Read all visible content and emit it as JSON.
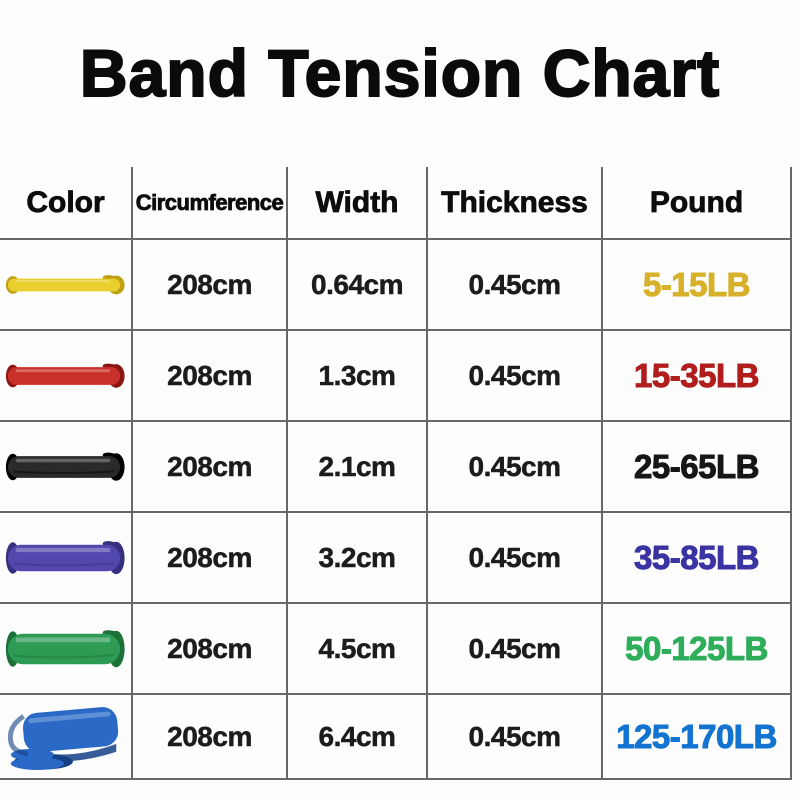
{
  "title": "Band Tension Chart",
  "table": {
    "headers": [
      {
        "label": "Color"
      },
      {
        "label": "Circumference"
      },
      {
        "label": "Width"
      },
      {
        "label": "Thickness"
      },
      {
        "label": "Pound"
      }
    ],
    "rows": [
      {
        "band": {
          "name": "yellow-band",
          "color_name": "yellow",
          "fill": "#E9CF2D",
          "dark": "#BFA013",
          "thumb_height": 13,
          "style": "flat"
        },
        "circumference": "208cm",
        "width": "0.64cm",
        "thickness": "0.45cm",
        "pound": "5-15LB",
        "pound_color": "#D7B12A"
      },
      {
        "band": {
          "name": "red-band",
          "color_name": "red",
          "fill": "#C93028",
          "dark": "#8C1712",
          "thumb_height": 18,
          "style": "flat"
        },
        "circumference": "208cm",
        "width": "1.3cm",
        "thickness": "0.45cm",
        "pound": "15-35LB",
        "pound_color": "#B11D1D"
      },
      {
        "band": {
          "name": "black-band",
          "color_name": "black",
          "fill": "#2A2A2A",
          "dark": "#000000",
          "thumb_height": 22,
          "style": "flat"
        },
        "circumference": "208cm",
        "width": "2.1cm",
        "thickness": "0.45cm",
        "pound": "25-65LB",
        "pound_color": "#161616"
      },
      {
        "band": {
          "name": "purple-band",
          "color_name": "purple",
          "fill": "#5247AC",
          "dark": "#37307E",
          "thumb_height": 27,
          "style": "flat"
        },
        "circumference": "208cm",
        "width": "3.2cm",
        "thickness": "0.45cm",
        "pound": "35-85LB",
        "pound_color": "#3A33A2"
      },
      {
        "band": {
          "name": "green-band",
          "color_name": "green",
          "fill": "#2E9B55",
          "dark": "#1C7038",
          "thumb_height": 31,
          "style": "flat"
        },
        "circumference": "208cm",
        "width": "4.5cm",
        "thickness": "0.45cm",
        "pound": "50-125LB",
        "pound_color": "#2EAD5B"
      },
      {
        "band": {
          "name": "blue-band",
          "color_name": "blue",
          "fill": "#2A6AC6",
          "dark": "#153F85",
          "thumb_height": 55,
          "style": "coil"
        },
        "circumference": "208cm",
        "width": "6.4cm",
        "thickness": "0.45cm",
        "pound": "125-170LB",
        "pound_color": "#1273D0"
      }
    ]
  },
  "chart_data": {
    "type": "table",
    "title": "Band Tension Chart",
    "columns": [
      "Color",
      "Circumference",
      "Width",
      "Thickness",
      "Pound"
    ],
    "rows": [
      [
        "yellow",
        "208cm",
        "0.64cm",
        "0.45cm",
        "5-15LB"
      ],
      [
        "red",
        "208cm",
        "1.3cm",
        "0.45cm",
        "15-35LB"
      ],
      [
        "black",
        "208cm",
        "2.1cm",
        "0.45cm",
        "25-65LB"
      ],
      [
        "purple",
        "208cm",
        "3.2cm",
        "0.45cm",
        "35-85LB"
      ],
      [
        "green",
        "208cm",
        "4.5cm",
        "0.45cm",
        "50-125LB"
      ],
      [
        "blue",
        "208cm",
        "6.4cm",
        "0.45cm",
        "125-170LB"
      ]
    ]
  }
}
